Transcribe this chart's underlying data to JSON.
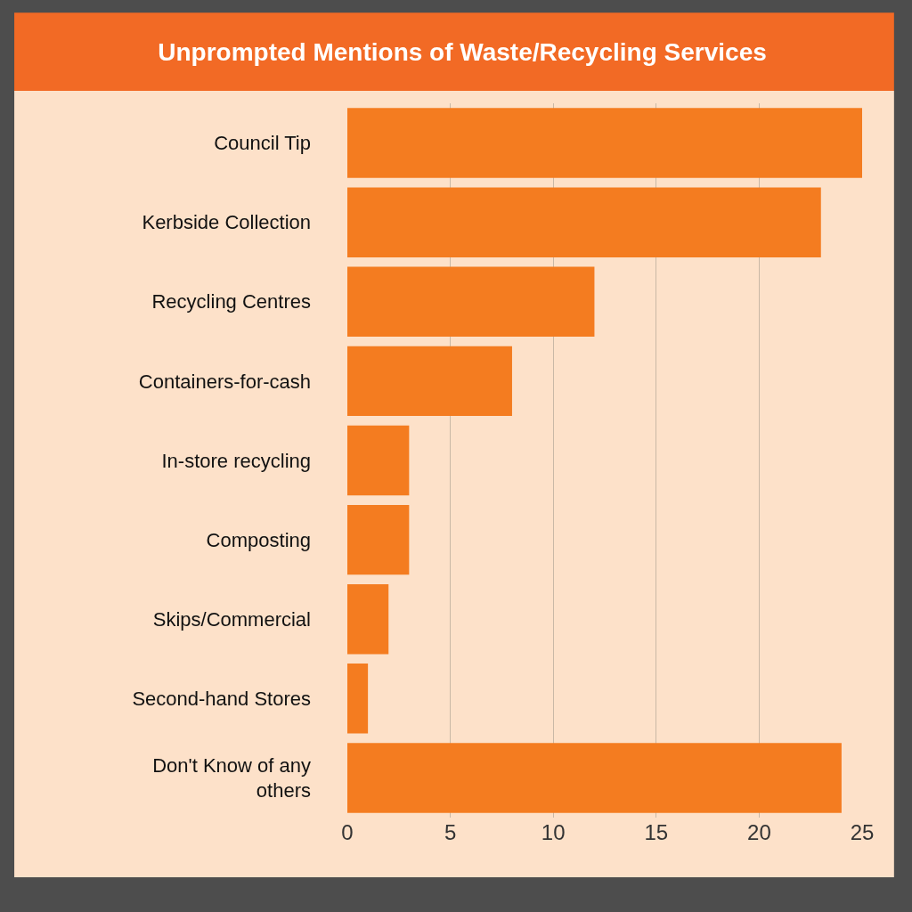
{
  "chart_data": {
    "type": "bar",
    "orientation": "horizontal",
    "title": "Unprompted Mentions of Waste/Recycling Services",
    "categories": [
      "Council Tip",
      "Kerbside Collection",
      "Recycling Centres",
      "Containers-for-cash",
      "In-store recycling",
      "Composting",
      "Skips/Commercial",
      "Second-hand Stores",
      "Don't Know of any others"
    ],
    "values": [
      25,
      23,
      12,
      8,
      3,
      3,
      2,
      1,
      24
    ],
    "color": "#f47c20",
    "xlim": [
      0,
      25
    ],
    "xticks": [
      0,
      5,
      10,
      15,
      20,
      25
    ],
    "grid": "x",
    "legend": false
  }
}
